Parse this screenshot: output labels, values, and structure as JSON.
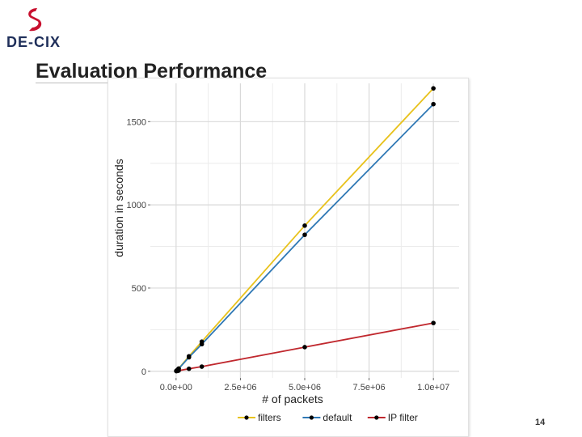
{
  "logo": {
    "text": "DE-CIX",
    "color": "#c8102e"
  },
  "slide": {
    "title": "Evaluation Performance",
    "page_number": "14"
  },
  "chart_data": {
    "type": "line",
    "title": "",
    "xlabel": "# of packets",
    "ylabel": "duration in seconds",
    "xlim": [
      -1000000,
      11000000
    ],
    "ylim": [
      -40,
      1730
    ],
    "x_ticks": [
      0,
      2500000,
      5000000,
      7500000,
      10000000
    ],
    "x_tick_labels": [
      "0.0e+00",
      "2.5e+06",
      "5.0e+06",
      "7.5e+06",
      "1.0e+07"
    ],
    "y_ticks": [
      0,
      500,
      1000,
      1500
    ],
    "y_tick_labels": [
      "0",
      "500",
      "1000",
      "1500"
    ],
    "grid": true,
    "legend_position": "bottom",
    "series": [
      {
        "name": "filters",
        "color": "#e8c21c",
        "x": [
          10000,
          50000,
          100000,
          500000,
          1000000,
          5000000,
          10000000
        ],
        "y": [
          2,
          8,
          16,
          90,
          178,
          875,
          1700
        ]
      },
      {
        "name": "default",
        "color": "#2f78b5",
        "x": [
          10000,
          50000,
          100000,
          500000,
          1000000,
          5000000,
          10000000
        ],
        "y": [
          2,
          7,
          15,
          84,
          163,
          820,
          1605
        ]
      },
      {
        "name": "IP filter",
        "color": "#c0282e",
        "x": [
          10000,
          50000,
          100000,
          500000,
          1000000,
          5000000,
          10000000
        ],
        "y": [
          1,
          2,
          4,
          15,
          28,
          145,
          290
        ]
      }
    ]
  }
}
